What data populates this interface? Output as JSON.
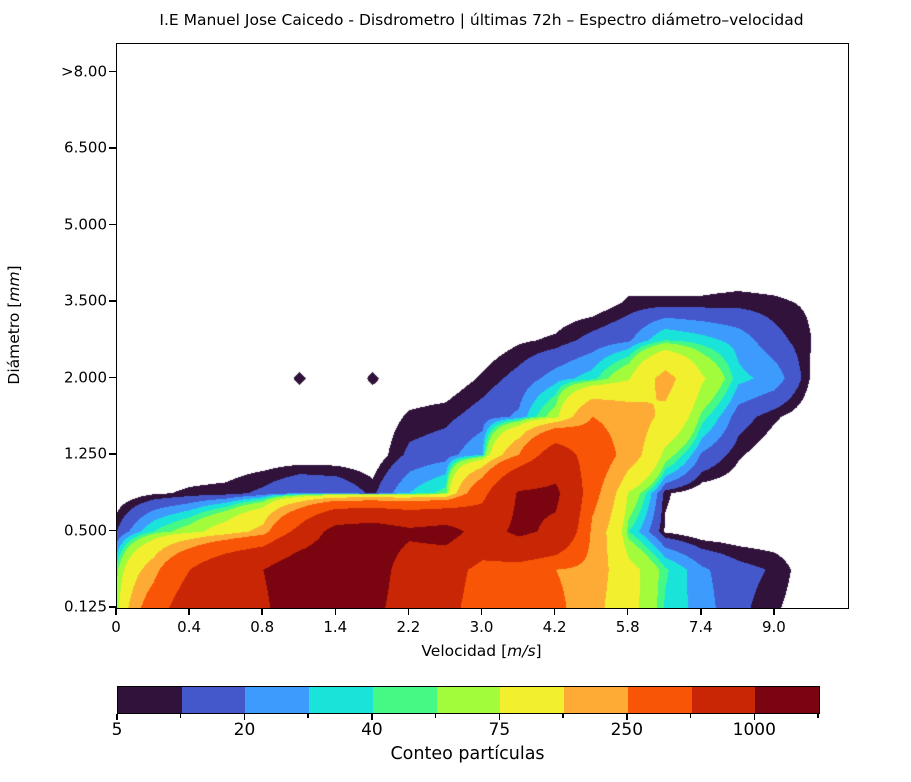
{
  "title": {
    "text": "I.E Manuel Jose Caicedo - Disdrometro | últimas 72h – Espectro diámetro–velocidad"
  },
  "axes": {
    "xlabel": {
      "prefix": "Velocidad [",
      "italic": "m/s",
      "suffix": "]"
    },
    "ylabel": {
      "prefix": "Diámetro [",
      "italic": "mm",
      "suffix": "]"
    },
    "x_tick_labels": [
      "0",
      "0.4",
      "0.8",
      "1.4",
      "2.2",
      "3.0",
      "4.2",
      "5.8",
      "7.4",
      "9.0"
    ],
    "y_tick_labels": [
      "0.125",
      "0.500",
      "1.250",
      "2.000",
      "3.500",
      "5.000",
      "6.500",
      ">8.00"
    ]
  },
  "colorbar": {
    "label": "Conteo partículas",
    "tick_labels": [
      "5",
      "20",
      "40",
      "75",
      "250",
      "1000"
    ],
    "labeled_boundary_indices": [
      0,
      2,
      4,
      6,
      8,
      10
    ],
    "n_segments": 11
  },
  "chart_data": {
    "type": "heatmap",
    "subtype": "filled-contour-spectrum",
    "title": "I.E Manuel Jose Caicedo - Disdrometro | últimas 72h – Espectro diámetro–velocidad",
    "xlabel": "Velocidad [m/s]",
    "ylabel": "Diámetro [mm]",
    "x_ticks": [
      "0",
      "0.4",
      "0.8",
      "1.4",
      "2.2",
      "3.0",
      "4.2",
      "5.8",
      "7.4",
      "9.0"
    ],
    "y_ticks": [
      "0.125",
      "0.500",
      "1.250",
      "2.000",
      "3.500",
      "5.000",
      "6.500",
      ">8.00"
    ],
    "value_label": "Conteo partículas",
    "levels": [
      5,
      10,
      20,
      30,
      40,
      50,
      75,
      150,
      250,
      500,
      1000,
      2000
    ],
    "band_colors": [
      "#30123b",
      "#4458cb",
      "#3e9bfe",
      "#1ae4d9",
      "#46f884",
      "#a2fc3c",
      "#f2ef2f",
      "#fdab35",
      "#f85506",
      "#c82605",
      "#7a0510"
    ],
    "background_color": "#ffffff",
    "grid": {
      "tx_min": 0,
      "tx_max": 10,
      "tx_step": 0.5,
      "ty_min": 0,
      "ty_max": 4.5,
      "ty_step": 0.5,
      "x_ticks_at_integer_tx": true,
      "y_ticks_at_integer_ty": true,
      "values_rows_bottom_to_top": [
        [
          60,
          350,
          700,
          800,
          900,
          1400,
          1400,
          1150,
          700,
          600,
          350,
          350,
          280,
          180,
          90,
          38,
          25,
          12,
          6,
          0,
          0
        ],
        [
          45,
          200,
          500,
          800,
          1000,
          1400,
          1400,
          1300,
          700,
          650,
          400,
          350,
          250,
          200,
          90,
          42,
          22,
          13,
          9,
          0,
          0
        ],
        [
          10,
          40,
          60,
          100,
          180,
          600,
          1200,
          1300,
          1100,
          1200,
          800,
          1100,
          900,
          220,
          40,
          4,
          0,
          0,
          0,
          0,
          0
        ],
        [
          0,
          4,
          6,
          7,
          12,
          20,
          18,
          8,
          30,
          45,
          400,
          1050,
          1100,
          300,
          70,
          6,
          0,
          0,
          0,
          0,
          0
        ],
        [
          0,
          0,
          0,
          0,
          0,
          0,
          0,
          0,
          12,
          15,
          30,
          250,
          700,
          350,
          200,
          60,
          18,
          6,
          0,
          0,
          0
        ],
        [
          0,
          0,
          0,
          0,
          0,
          0,
          0,
          0,
          6,
          8,
          14,
          22,
          60,
          250,
          200,
          130,
          45,
          14,
          6,
          0,
          0
        ],
        [
          0,
          0,
          0,
          0,
          0,
          6,
          0,
          6,
          0,
          0,
          6,
          13,
          25,
          35,
          70,
          180,
          80,
          33,
          26,
          4,
          0
        ],
        [
          0,
          0,
          0,
          0,
          0,
          0,
          0,
          0,
          0,
          0,
          0,
          4,
          6,
          13,
          18,
          40,
          34,
          26,
          13,
          5,
          0
        ],
        [
          0,
          0,
          0,
          0,
          0,
          0,
          0,
          0,
          0,
          0,
          0,
          0,
          0,
          0,
          6,
          6,
          6,
          7,
          6,
          4,
          0
        ],
        [
          0,
          0,
          0,
          0,
          0,
          0,
          0,
          0,
          0,
          0,
          0,
          0,
          0,
          0,
          0,
          0,
          0,
          0,
          0,
          0,
          0
        ]
      ]
    }
  }
}
